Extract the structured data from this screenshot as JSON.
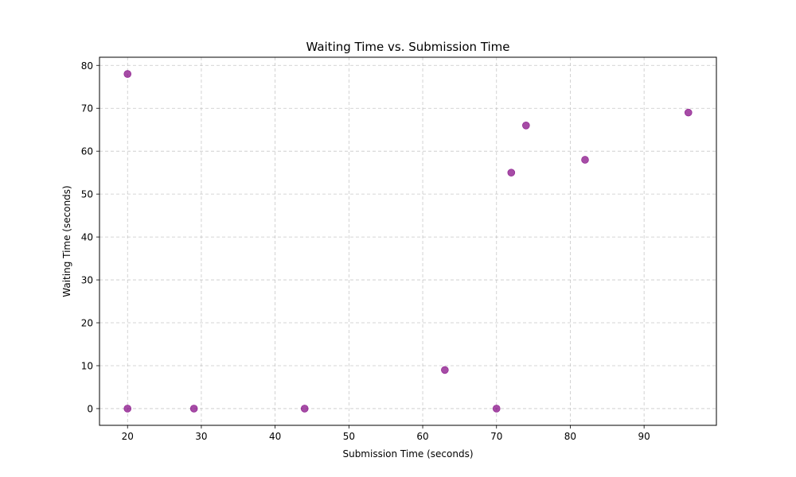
{
  "chart_data": {
    "type": "scatter",
    "title": "Waiting Time vs. Submission Time",
    "xlabel": "Submission Time (seconds)",
    "ylabel": "Waiting Time (seconds)",
    "xlim": [
      16.2,
      99.8
    ],
    "ylim": [
      -3.9,
      81.9
    ],
    "xticks": [
      20,
      30,
      40,
      50,
      60,
      70,
      80,
      90
    ],
    "yticks": [
      0,
      10,
      20,
      30,
      40,
      50,
      60,
      70,
      80
    ],
    "grid": true,
    "grid_style": "dashed",
    "marker_color": "#800080",
    "marker_alpha": 0.7,
    "points": [
      {
        "x": 20,
        "y": 78
      },
      {
        "x": 20,
        "y": 0
      },
      {
        "x": 29,
        "y": 0
      },
      {
        "x": 44,
        "y": 0
      },
      {
        "x": 63,
        "y": 9
      },
      {
        "x": 70,
        "y": 0
      },
      {
        "x": 72,
        "y": 55
      },
      {
        "x": 74,
        "y": 66
      },
      {
        "x": 82,
        "y": 58
      },
      {
        "x": 96,
        "y": 69
      }
    ]
  }
}
